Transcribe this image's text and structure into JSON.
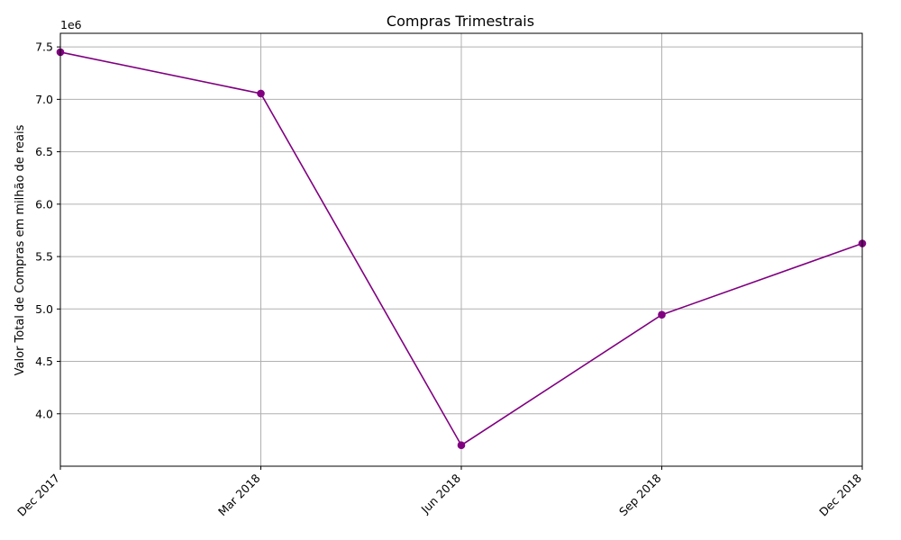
{
  "chart_data": {
    "type": "line",
    "title": "Compras Trimestrais",
    "xlabel": "",
    "ylabel": "Valor Total de Compras em milhão de reais",
    "y_offset_label": "1e6",
    "categories": [
      "Dec 2017",
      "Mar 2018",
      "Jun 2018",
      "Sep 2018",
      "Dec 2018"
    ],
    "values": [
      7450000,
      7055000,
      3700000,
      4945000,
      5625000
    ],
    "y_ticks": [
      4.0,
      4.5,
      5.0,
      5.5,
      6.0,
      6.5,
      7.0,
      7.5
    ],
    "y_tick_labels": [
      "4.0",
      "4.5",
      "5.0",
      "5.5",
      "6.0",
      "6.5",
      "7.0",
      "7.5"
    ],
    "ylim": [
      3.5,
      7.63
    ],
    "grid": true,
    "color": "#800080",
    "marker": "circle"
  }
}
